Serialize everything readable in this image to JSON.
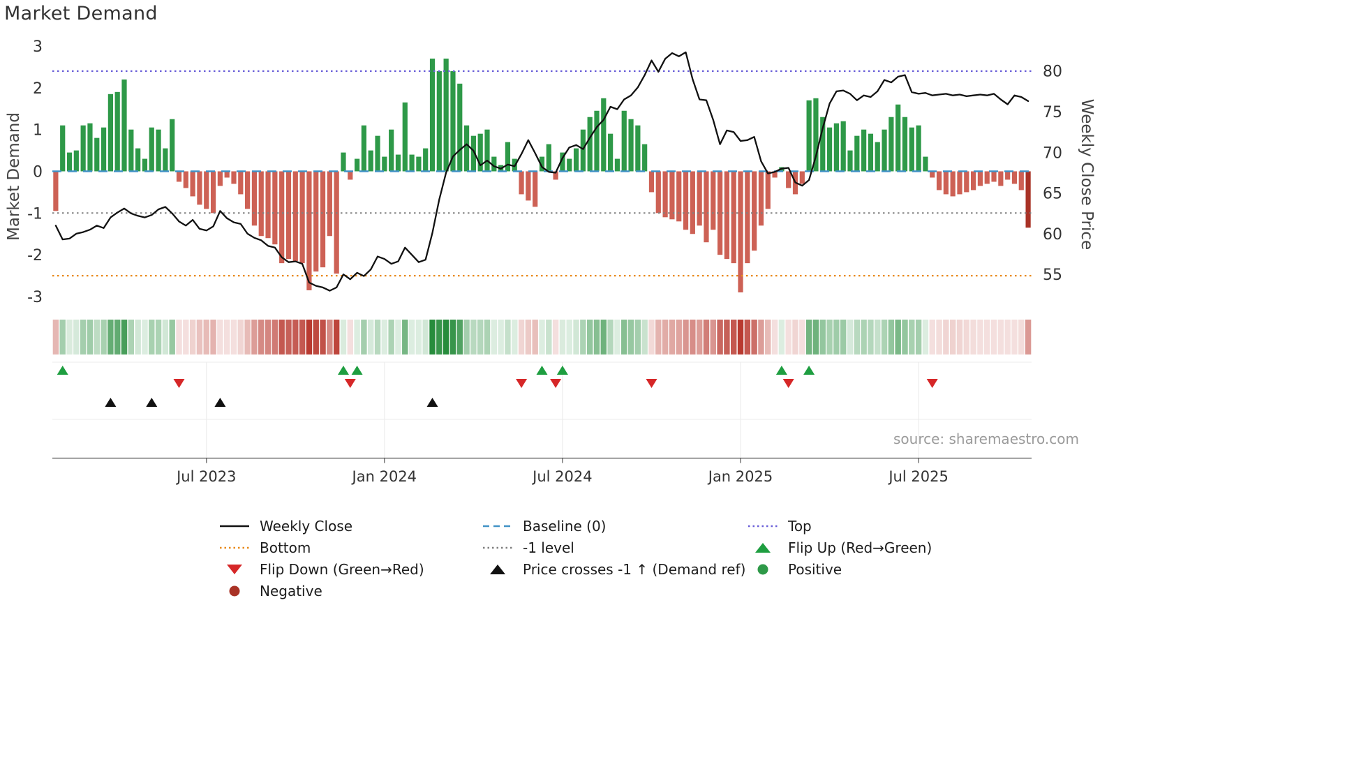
{
  "title": "Market Demand",
  "source_note": "source: sharemaestro.com",
  "axes": {
    "left_label": "Market Demand",
    "right_label": "Weekly Close Price",
    "left_ticks": [
      3,
      2,
      1,
      0,
      -1,
      -2,
      -3
    ],
    "right_ticks": [
      80,
      75,
      70,
      65,
      60,
      55
    ],
    "x_ticks": [
      "Jul 2023",
      "Jan 2024",
      "Jul 2024",
      "Jan 2025",
      "Jul 2025"
    ]
  },
  "chart_data": {
    "type": "bar+line",
    "title": "Market Demand",
    "x_unit": "week",
    "n_weeks": 143,
    "x_range_note": "weekly data, approx. late Jan 2023 to late Oct 2025",
    "demand_axis_range": [
      -3,
      3
    ],
    "price_axis_visible_range": [
      55,
      80
    ],
    "baseline": 0,
    "top_level": 2.4,
    "bottom_level": -2.5,
    "minus1_level": -1,
    "x_tick_weeks": [
      22,
      48,
      74,
      100,
      126
    ],
    "demand": [
      -0.95,
      1.1,
      0.45,
      0.5,
      1.1,
      1.15,
      0.8,
      1.05,
      1.85,
      1.9,
      2.2,
      1.0,
      0.55,
      0.3,
      1.05,
      1.0,
      0.55,
      1.25,
      -0.25,
      -0.4,
      -0.6,
      -0.8,
      -0.9,
      -1.0,
      -0.35,
      -0.15,
      -0.3,
      -0.55,
      -0.9,
      -1.3,
      -1.55,
      -1.6,
      -1.75,
      -2.2,
      -2.1,
      -2.15,
      -2.2,
      -2.85,
      -2.4,
      -2.3,
      -1.55,
      -2.45,
      0.45,
      -0.2,
      0.3,
      1.1,
      0.5,
      0.85,
      0.35,
      1.0,
      0.4,
      1.65,
      0.4,
      0.35,
      0.55,
      2.7,
      2.4,
      2.7,
      2.4,
      2.1,
      1.1,
      0.85,
      0.9,
      1.0,
      0.35,
      0.15,
      0.7,
      0.3,
      -0.55,
      -0.7,
      -0.85,
      0.35,
      0.65,
      -0.2,
      0.45,
      0.3,
      0.55,
      1.0,
      1.3,
      1.45,
      1.75,
      0.9,
      0.3,
      1.45,
      1.25,
      1.1,
      0.65,
      -0.5,
      -1.0,
      -1.1,
      -1.15,
      -1.2,
      -1.4,
      -1.5,
      -1.3,
      -1.7,
      -1.4,
      -2.0,
      -2.1,
      -2.2,
      -2.9,
      -2.2,
      -1.9,
      -1.3,
      -0.9,
      -0.15,
      0.1,
      -0.4,
      -0.55,
      -0.3,
      1.7,
      1.75,
      1.3,
      1.05,
      1.15,
      1.2,
      0.5,
      0.85,
      1.0,
      0.9,
      0.7,
      1.0,
      1.3,
      1.6,
      1.3,
      1.05,
      1.1,
      0.35,
      -0.15,
      -0.45,
      -0.55,
      -0.6,
      -0.55,
      -0.5,
      -0.45,
      -0.35,
      -0.3,
      -0.25,
      -0.35,
      -0.2,
      -0.3,
      -0.45,
      -1.35
    ],
    "price": [
      61.0,
      59.3,
      59.4,
      60.0,
      60.2,
      60.5,
      61.0,
      60.7,
      62.0,
      62.6,
      63.1,
      62.5,
      62.2,
      62.0,
      62.3,
      63.0,
      63.3,
      62.5,
      61.5,
      61.0,
      61.7,
      60.6,
      60.4,
      60.9,
      62.8,
      61.9,
      61.4,
      61.2,
      60.0,
      59.5,
      59.2,
      58.5,
      58.3,
      57.1,
      56.5,
      56.6,
      56.3,
      54.0,
      53.6,
      53.4,
      53.0,
      53.4,
      55.0,
      54.4,
      55.2,
      54.8,
      55.6,
      57.2,
      56.9,
      56.3,
      56.6,
      58.3,
      57.4,
      56.5,
      56.8,
      60.1,
      64.2,
      67.5,
      69.5,
      70.3,
      71.0,
      70.2,
      68.4,
      69.0,
      68.3,
      68.0,
      68.5,
      68.3,
      69.8,
      71.5,
      69.9,
      68.2,
      67.6,
      67.5,
      69.3,
      70.6,
      70.9,
      70.4,
      71.8,
      73.1,
      74.0,
      75.6,
      75.3,
      76.5,
      77.0,
      78.0,
      79.5,
      81.3,
      79.9,
      81.5,
      82.2,
      81.8,
      82.3,
      79.0,
      76.5,
      76.4,
      74.0,
      71.0,
      72.7,
      72.5,
      71.4,
      71.5,
      71.9,
      68.9,
      67.4,
      67.6,
      68.0,
      68.1,
      66.3,
      65.9,
      66.6,
      69.5,
      73.0,
      76.0,
      77.5,
      77.6,
      77.2,
      76.4,
      77.0,
      76.8,
      77.5,
      78.9,
      78.6,
      79.3,
      79.5,
      77.4,
      77.2,
      77.3,
      77.0,
      77.1,
      77.2,
      77.0,
      77.1,
      76.9,
      77.0,
      77.1,
      77.0,
      77.2,
      76.5,
      75.9,
      77.0,
      76.8,
      76.3
    ],
    "flip_up_weeks": [
      1,
      42,
      44,
      71,
      74,
      106,
      110
    ],
    "flip_down_weeks": [
      18,
      43,
      68,
      73,
      87,
      107,
      128
    ],
    "price_cross_weeks": [
      8,
      14,
      24,
      55
    ]
  },
  "legend": {
    "items": [
      {
        "label": "Weekly Close",
        "marker": "black-line"
      },
      {
        "label": "Baseline (0)",
        "marker": "blue-dashed-line"
      },
      {
        "label": "Top",
        "marker": "purple-dotted-line"
      },
      {
        "label": "Bottom",
        "marker": "orange-dotted-line"
      },
      {
        "label": "-1 level",
        "marker": "gray-dotted-line"
      },
      {
        "label": "Flip Up (Red→Green)",
        "marker": "green-up-triangle"
      },
      {
        "label": "Flip Down (Green→Red)",
        "marker": "red-down-triangle"
      },
      {
        "label": "Price crosses -1 ↑ (Demand ref)",
        "marker": "black-up-triangle"
      },
      {
        "label": "Positive",
        "marker": "green-circle"
      },
      {
        "label": "Negative",
        "marker": "dark-red-circle"
      }
    ]
  },
  "colors": {
    "positive_bar": "#2e9948",
    "negative_bar": "#cd6155",
    "latest_negative_bar": "#a93226",
    "price_line": "#111111",
    "baseline": "#4292c6",
    "top_line": "#6a5fd8",
    "bottom_line": "#e8891a",
    "minus1_line": "#808080",
    "flip_up": "#1e9e40",
    "flip_down": "#d62728",
    "price_cross": "#111111",
    "heat_positive": "#278c3c",
    "heat_negative": "#b93a30"
  }
}
